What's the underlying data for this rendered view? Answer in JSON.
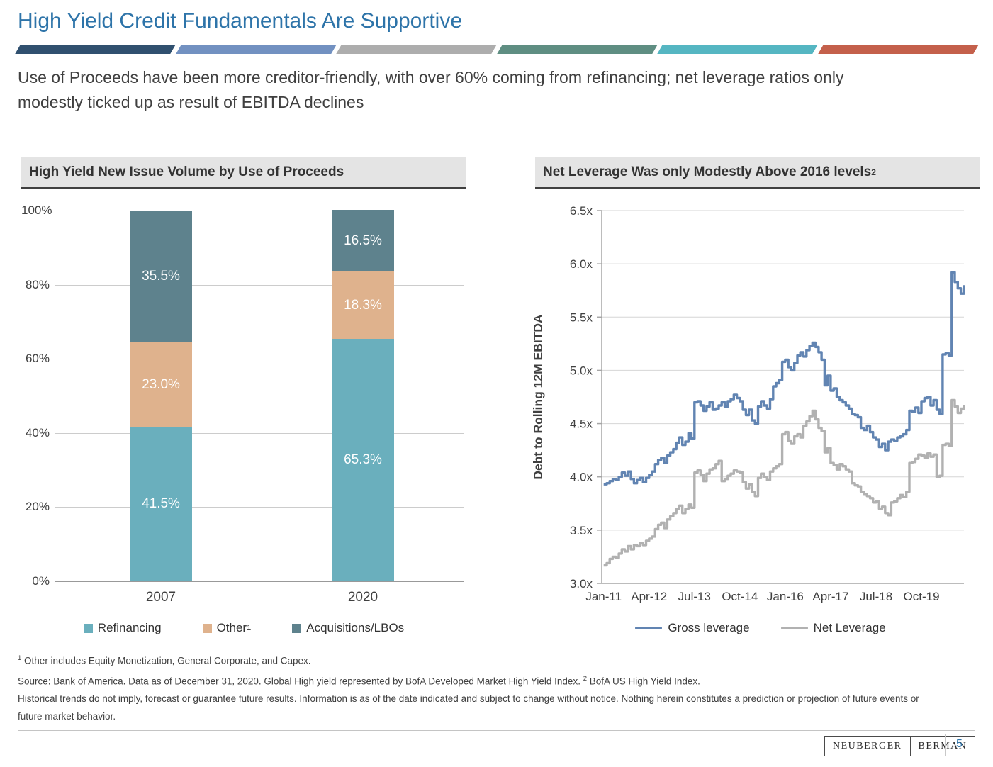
{
  "slide": {
    "title": "High Yield Credit Fundamentals Are Supportive",
    "subtitle_line1": "Use of Proceeds have been more creditor-friendly, with over 60% coming from refinancing; net leverage ratios only",
    "subtitle_line2": "modestly ticked up as result of EBITDA declines",
    "divider_colors": [
      "#30506F",
      "#7291C1",
      "#ADADAD",
      "#5F8E82",
      "#55B6C2",
      "#C4604B"
    ]
  },
  "left_panel": {
    "header": "High Yield New Issue Volume by Use of Proceeds",
    "legend": [
      {
        "label": "Refinancing",
        "sup": "",
        "color": "#6AAFBD"
      },
      {
        "label": "Other",
        "sup": "1",
        "color": "#DFB28D"
      },
      {
        "label": "Acquisitions/LBOs",
        "sup": "",
        "color": "#5E828D"
      }
    ]
  },
  "right_panel": {
    "header": "Net Leverage Was only Modestly Above 2016 levels",
    "header_sup": "2",
    "legend": [
      {
        "label": "Gross leverage",
        "color": "#6184B2"
      },
      {
        "label": "Net Leverage",
        "color": "#B1B1B1"
      }
    ]
  },
  "footnotes": {
    "fn1_sup": "1",
    "fn1_text": " Other includes Equity Monetization, General Corporate, and Capex.",
    "fn2_text": "Source: Bank of America. Data as of December 31, 2020. Global High yield represented by BofA Developed Market High Yield Index. ",
    "fn2_sup": "2",
    "fn2_text2": " BofA US High Yield Index.",
    "fn3_text": "Historical trends do not imply, forecast or guarantee future results. Information is as of the date indicated and subject to change without notice. Nothing herein constitutes a prediction or projection of future events or future market behavior."
  },
  "footer": {
    "brand_left": "NEUBERGER",
    "brand_right": "BERMAN",
    "page_number": "5"
  },
  "chart_data": [
    {
      "type": "bar",
      "stacked": true,
      "title": "High Yield New Issue Volume by Use of Proceeds",
      "categories": [
        "2007",
        "2020"
      ],
      "series": [
        {
          "name": "Refinancing",
          "color": "#6AAFBD",
          "values": [
            41.5,
            65.3
          ]
        },
        {
          "name": "Other",
          "color": "#DFB28D",
          "values": [
            23.0,
            18.3
          ]
        },
        {
          "name": "Acquisitions/LBOs",
          "color": "#5E828D",
          "values": [
            35.5,
            16.5
          ]
        }
      ],
      "value_labels": [
        [
          "41.5%",
          "23.0%",
          "35.5%"
        ],
        [
          "65.3%",
          "18.3%",
          "16.5%"
        ]
      ],
      "ylim": [
        0,
        100
      ],
      "yticks": [
        "0%",
        "20%",
        "40%",
        "60%",
        "80%",
        "100%"
      ],
      "grid": true,
      "legend_position": "bottom"
    },
    {
      "type": "line",
      "title": "Net Leverage Was only Modestly Above 2016 levels (2)",
      "ylabel": "Debt to Rolling 12M EBITDA",
      "ylim": [
        3.0,
        6.5
      ],
      "ytick_labels": [
        "3.0x",
        "3.5x",
        "4.0x",
        "4.5x",
        "5.0x",
        "5.5x",
        "6.0x",
        "6.5x"
      ],
      "x_start": "Jan-2011",
      "x_end": "Dec-2020",
      "x_freq": "monthly",
      "xtick_labels": [
        "Jan-11",
        "Apr-12",
        "Jul-13",
        "Oct-14",
        "Jan-16",
        "Apr-17",
        "Jul-18",
        "Oct-19"
      ],
      "xtick_month_index": [
        0,
        15,
        30,
        45,
        60,
        75,
        90,
        105
      ],
      "grid": true,
      "legend_position": "bottom",
      "series": [
        {
          "name": "Gross leverage",
          "color": "#6184B2",
          "values": [
            3.93,
            3.94,
            3.96,
            3.98,
            3.97,
            4.0,
            4.04,
            4.01,
            4.05,
            3.98,
            3.94,
            3.97,
            3.99,
            3.95,
            3.99,
            4.02,
            4.05,
            4.12,
            4.16,
            4.18,
            4.13,
            4.2,
            4.23,
            4.26,
            4.32,
            4.37,
            4.3,
            4.33,
            4.41,
            4.36,
            4.7,
            4.71,
            4.67,
            4.62,
            4.66,
            4.7,
            4.63,
            4.64,
            4.67,
            4.7,
            4.66,
            4.71,
            4.73,
            4.77,
            4.74,
            4.71,
            4.63,
            4.58,
            4.63,
            4.53,
            4.5,
            4.66,
            4.71,
            4.67,
            4.64,
            4.73,
            4.85,
            4.88,
            4.91,
            5.08,
            5.1,
            5.03,
            5.0,
            5.07,
            5.14,
            5.17,
            5.13,
            5.19,
            5.23,
            5.26,
            5.22,
            5.17,
            5.1,
            4.86,
            4.95,
            4.81,
            4.83,
            4.75,
            4.72,
            4.7,
            4.67,
            4.64,
            4.59,
            4.58,
            4.56,
            4.46,
            4.44,
            4.48,
            4.42,
            4.37,
            4.35,
            4.28,
            4.31,
            4.25,
            4.33,
            4.35,
            4.34,
            4.37,
            4.38,
            4.4,
            4.44,
            4.62,
            4.61,
            4.65,
            4.6,
            4.71,
            4.74,
            4.75,
            4.67,
            4.72,
            4.63,
            4.59,
            5.15,
            5.16,
            5.14,
            5.92,
            5.83,
            5.77,
            5.72,
            5.8
          ]
        },
        {
          "name": "Net Leverage",
          "color": "#B1B1B1",
          "values": [
            3.17,
            3.19,
            3.23,
            3.25,
            3.24,
            3.28,
            3.32,
            3.3,
            3.35,
            3.32,
            3.36,
            3.35,
            3.38,
            3.36,
            3.4,
            3.42,
            3.44,
            3.51,
            3.55,
            3.57,
            3.52,
            3.6,
            3.63,
            3.66,
            3.7,
            3.73,
            3.66,
            3.7,
            3.74,
            3.71,
            4.04,
            4.06,
            4.02,
            3.96,
            4.03,
            4.07,
            4.08,
            4.12,
            4.15,
            3.96,
            3.98,
            4.01,
            4.03,
            4.06,
            4.05,
            4.04,
            3.95,
            3.89,
            3.93,
            3.86,
            3.82,
            3.99,
            4.03,
            4.0,
            3.97,
            4.05,
            4.08,
            4.1,
            4.12,
            4.4,
            4.42,
            4.34,
            4.31,
            4.38,
            4.4,
            4.37,
            4.48,
            4.52,
            4.57,
            4.62,
            4.54,
            4.46,
            4.43,
            4.23,
            4.27,
            4.13,
            4.11,
            4.07,
            4.12,
            4.1,
            4.07,
            4.05,
            3.94,
            3.92,
            3.91,
            3.86,
            3.84,
            3.82,
            3.8,
            3.76,
            3.77,
            3.7,
            3.72,
            3.66,
            3.64,
            3.76,
            3.77,
            3.8,
            3.83,
            3.81,
            3.86,
            4.13,
            4.14,
            4.17,
            4.21,
            4.2,
            4.18,
            4.22,
            4.19,
            4.21,
            4.0,
            4.01,
            4.3,
            4.31,
            4.29,
            4.72,
            4.66,
            4.6,
            4.64,
            4.67
          ]
        }
      ]
    }
  ]
}
